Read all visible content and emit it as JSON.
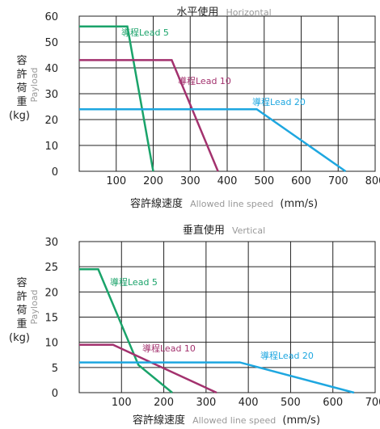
{
  "chart_data": [
    {
      "type": "line",
      "title": "水平使用",
      "subtitle": "Horizontal",
      "xlabel": "容許線速度",
      "xlabel_en": "Allowed line speed",
      "xlabel_unit": "(mm/s)",
      "ylabel_chars": [
        "容",
        "許",
        "荷",
        "重"
      ],
      "ylabel_unit": "(kg)",
      "ylabel_en": "Payload",
      "xlim": [
        0,
        800
      ],
      "ylim": [
        0,
        60
      ],
      "x_ticks": [
        100,
        200,
        300,
        400,
        500,
        600,
        700,
        800
      ],
      "x_tick_labels": [
        "100",
        "200",
        "300",
        "400",
        "500",
        "600",
        "700",
        "800"
      ],
      "y_ticks": [
        0,
        10,
        20,
        30,
        40,
        50,
        60
      ],
      "y_tick_labels": [
        "0",
        "10",
        "20",
        "30",
        "40",
        "50",
        "60"
      ],
      "grid": true,
      "series": [
        {
          "name": "導程Lead 5",
          "color": "#1aa36a",
          "x": [
            0,
            130,
            200
          ],
          "y": [
            56,
            56,
            0
          ]
        },
        {
          "name": "導程Lead 10",
          "color": "#a3326e",
          "x": [
            0,
            250,
            375
          ],
          "y": [
            43,
            43,
            0
          ]
        },
        {
          "name": "導程Lead 20",
          "color": "#1ea7e0",
          "x": [
            0,
            480,
            720
          ],
          "y": [
            24,
            24,
            0
          ]
        }
      ]
    },
    {
      "type": "line",
      "title": "垂直使用",
      "subtitle": "Vertical",
      "xlabel": "容許線速度",
      "xlabel_en": "Allowed line speed",
      "xlabel_unit": "(mm/s)",
      "ylabel_chars": [
        "容",
        "許",
        "荷",
        "重"
      ],
      "ylabel_unit": "(kg)",
      "ylabel_en": "Payload",
      "xlim": [
        0,
        700
      ],
      "ylim": [
        0,
        30
      ],
      "x_ticks": [
        100,
        200,
        300,
        400,
        500,
        600,
        700
      ],
      "x_tick_labels": [
        "100",
        "200",
        "300",
        "400",
        "500",
        "600",
        "700"
      ],
      "y_ticks": [
        0,
        5,
        10,
        15,
        20,
        25,
        30
      ],
      "y_tick_labels": [
        "0",
        "5",
        "10",
        "15",
        "20",
        "25",
        "30"
      ],
      "grid": true,
      "series": [
        {
          "name": "導程Lead 5",
          "color": "#1aa36a",
          "x": [
            0,
            45,
            140,
            220
          ],
          "y": [
            24.5,
            24.5,
            5.5,
            0
          ]
        },
        {
          "name": "導程Lead 10",
          "color": "#a3326e",
          "x": [
            0,
            80,
            170,
            325
          ],
          "y": [
            9.5,
            9.5,
            6,
            0
          ]
        },
        {
          "name": "導程Lead 20",
          "color": "#1ea7e0",
          "x": [
            0,
            380,
            650
          ],
          "y": [
            6,
            6,
            0
          ]
        }
      ]
    }
  ]
}
